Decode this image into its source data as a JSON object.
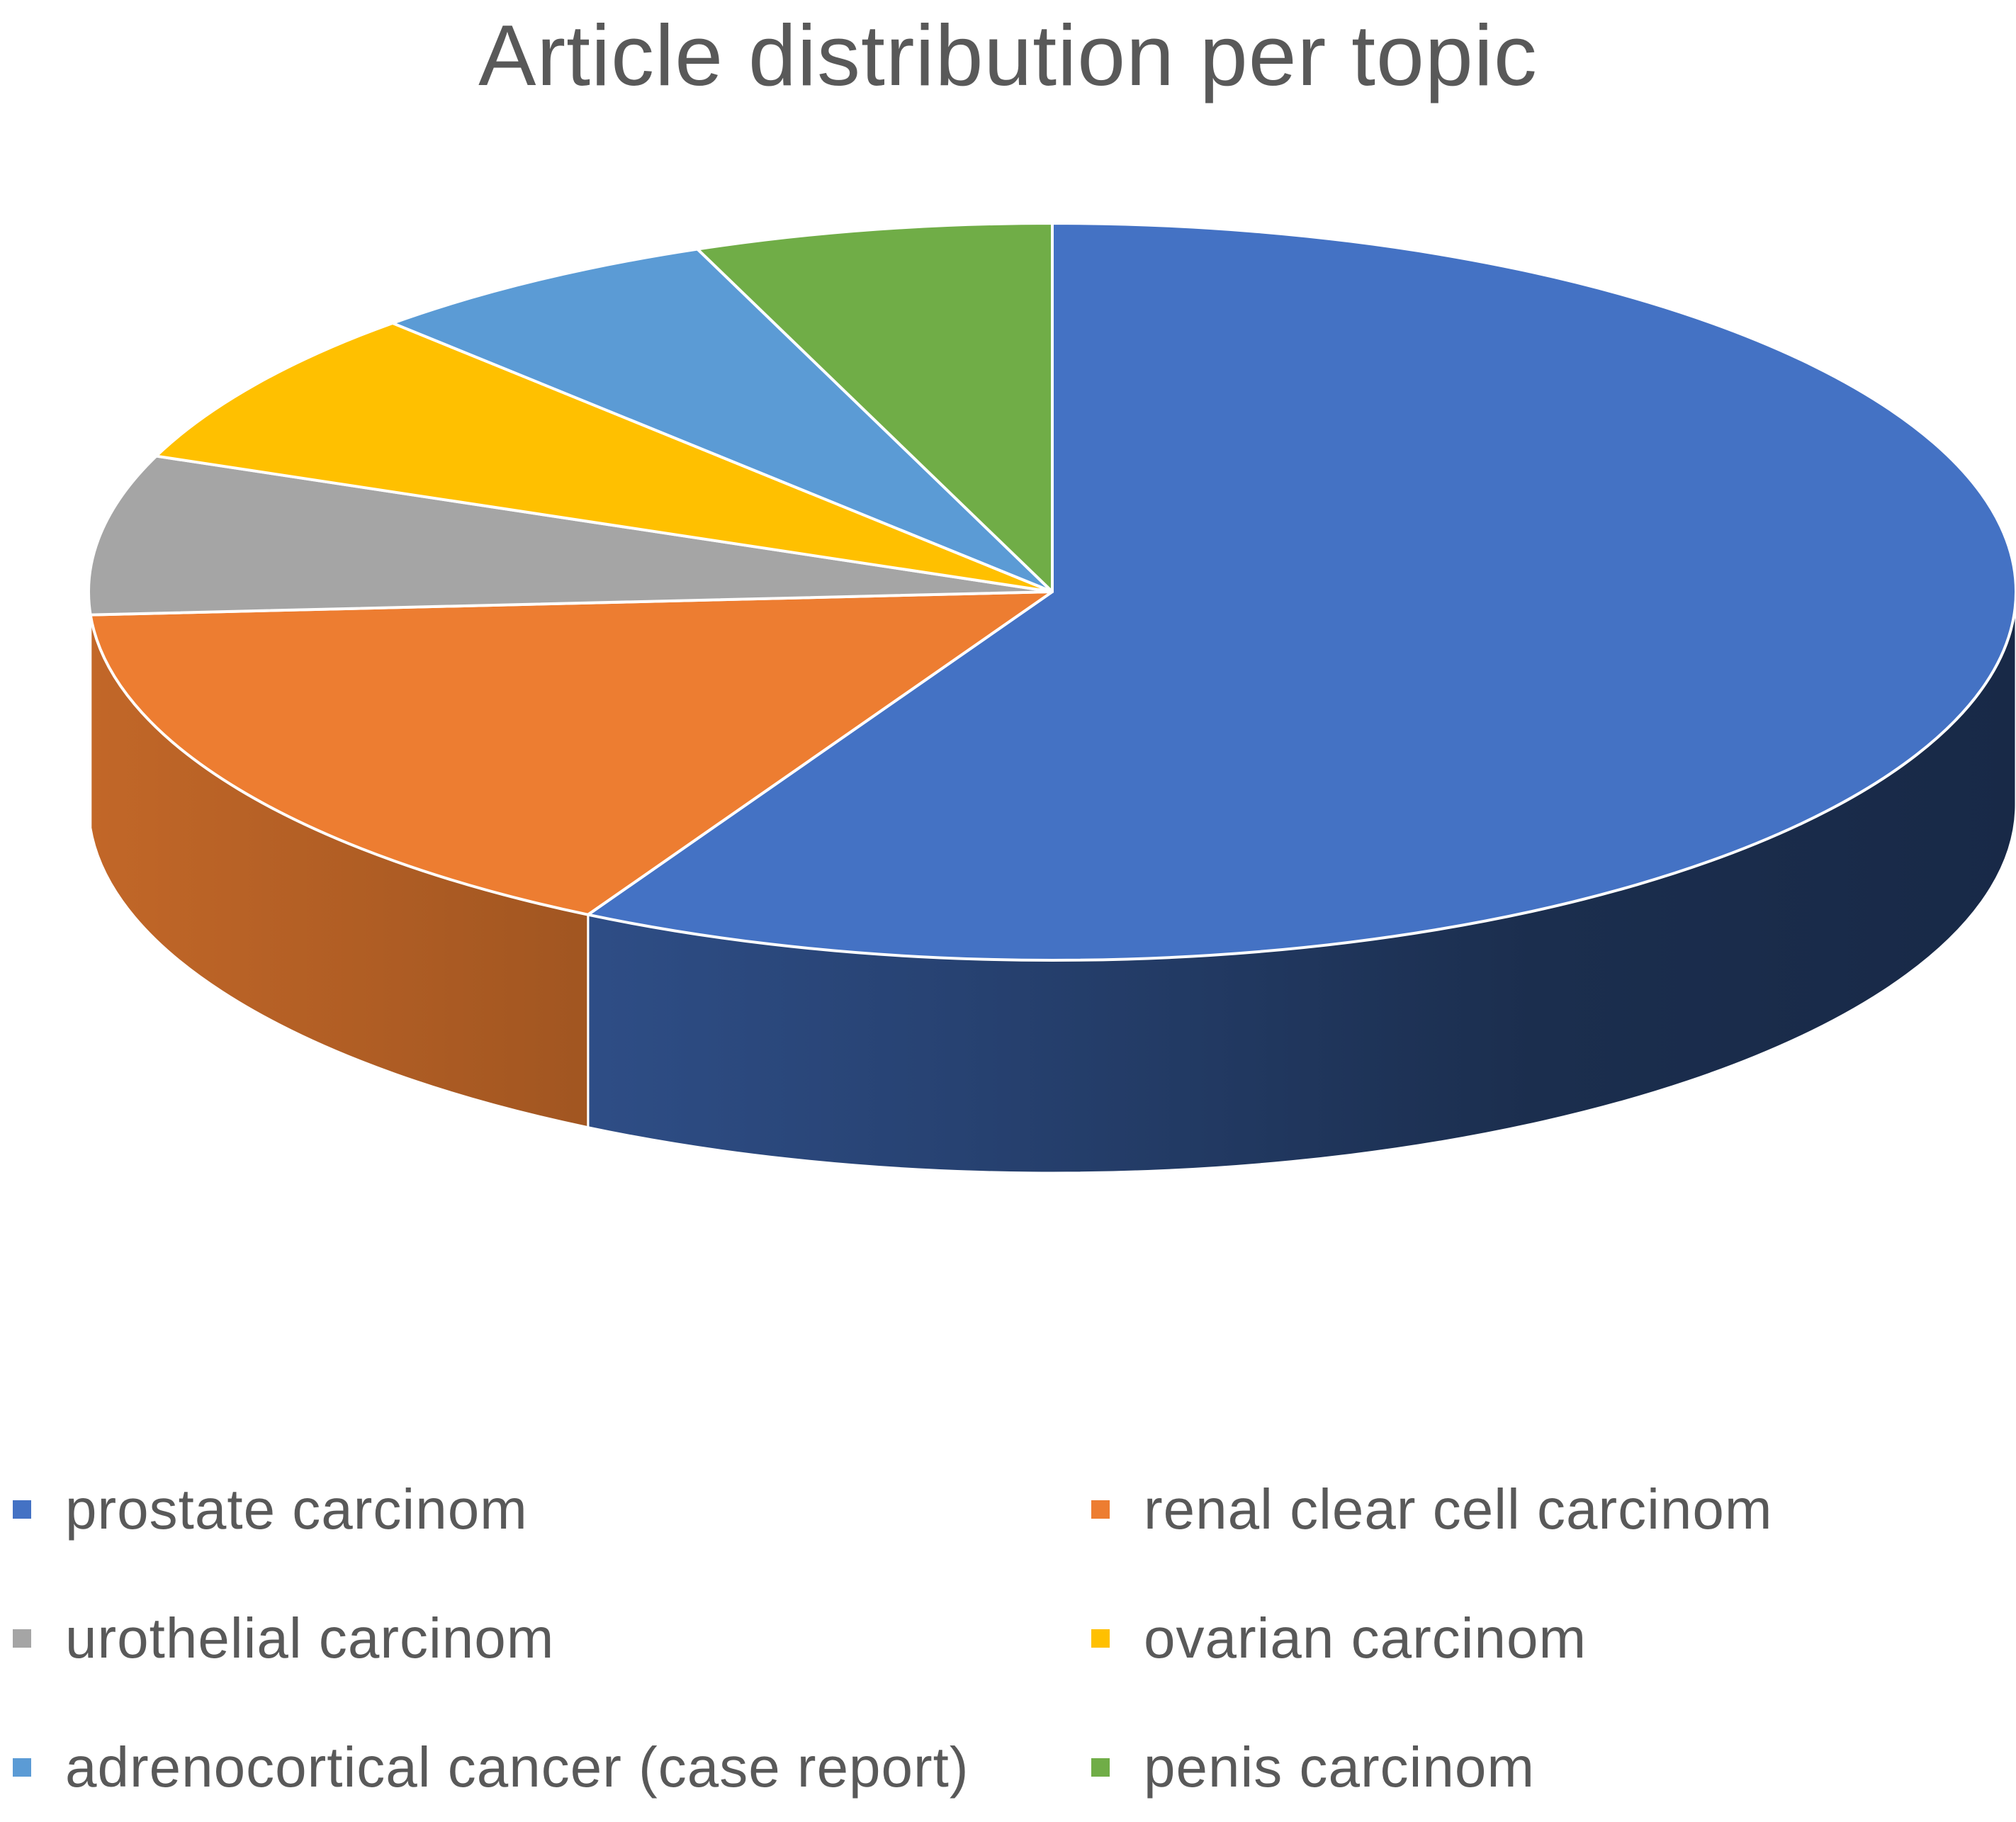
{
  "chart_data": {
    "type": "pie",
    "title": "Article distribution per topic",
    "unit": "",
    "style": "3d",
    "legend_position": "bottom",
    "labels": [
      "prostate carcinom",
      "renal clear cell carcinom",
      "urothelial carcinom",
      "ovarian carcinom",
      "adrenocortical cancer (case report)",
      "penis carcinom"
    ],
    "values": [
      58,
      16,
      7,
      7,
      6,
      6
    ],
    "colors": [
      "#4472C4",
      "#ED7D31",
      "#A5A5A5",
      "#FFC000",
      "#5B9BD5",
      "#70AD47"
    ]
  }
}
